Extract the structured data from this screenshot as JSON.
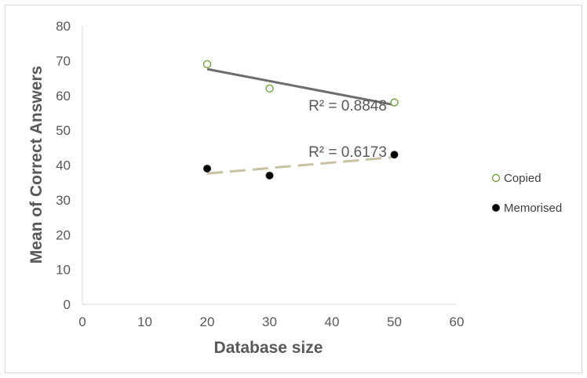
{
  "chart_data": {
    "type": "scatter",
    "xlabel": "Database size",
    "ylabel": "Mean of Correct Answers",
    "xlim": [
      0,
      60
    ],
    "ylim": [
      0,
      80
    ],
    "x_ticks": [
      "0",
      "10",
      "20",
      "30",
      "40",
      "50",
      "60"
    ],
    "y_ticks": [
      "0",
      "10",
      "20",
      "30",
      "40",
      "50",
      "60",
      "70",
      "80"
    ],
    "grid": false,
    "legend_position": "right",
    "series": [
      {
        "name": "Copied",
        "x": [
          20,
          30,
          50
        ],
        "y": [
          69,
          62,
          58
        ],
        "marker": "hollow-circle",
        "color": "#70a83a",
        "trendline": {
          "type": "linear",
          "style": "solid",
          "color": "#6d6d6d",
          "r_squared_label": "R² = 0.8848"
        }
      },
      {
        "name": "Memorised",
        "x": [
          20,
          30,
          50
        ],
        "y": [
          39,
          37,
          43
        ],
        "marker": "filled-circle",
        "color": "#000000",
        "trendline": {
          "type": "linear",
          "style": "dashed",
          "color": "#c7c2a3",
          "r_squared_label": "R² = 0.6173"
        }
      }
    ]
  }
}
